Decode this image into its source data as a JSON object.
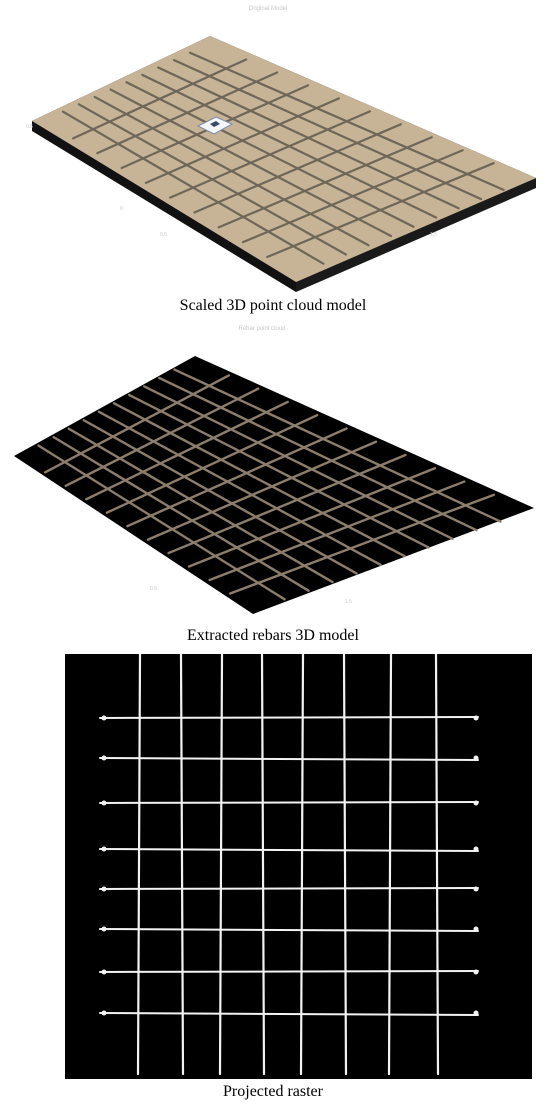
{
  "figure": {
    "panels": [
      {
        "caption": "Scaled 3D point cloud model",
        "plot_title": "Original Model",
        "background": "#ffffff",
        "surface_color": "#c7b496",
        "rebar_color": "#6e6658",
        "marker_color": "#ffffff"
      },
      {
        "caption": "Extracted rebars 3D model",
        "plot_title": "Rebar point cloud",
        "background": "#000000",
        "rebar_color": "#8c7e6a"
      },
      {
        "caption": "Projected raster",
        "background": "#000000",
        "rebar_color": "#f2f2f2"
      }
    ]
  }
}
